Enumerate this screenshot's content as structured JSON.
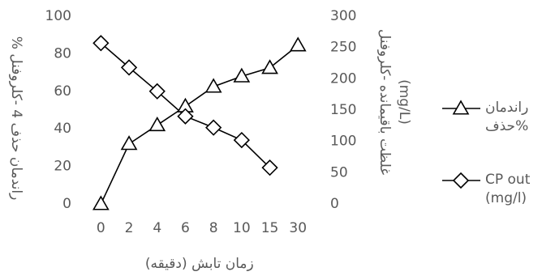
{
  "chart_data": {
    "type": "line",
    "categories": [
      "0",
      "2",
      "4",
      "6",
      "8",
      "10",
      "15",
      "30"
    ],
    "series": [
      {
        "name": "راندمان حذف%",
        "color": "#000000",
        "marker": "triangle",
        "values": [
          0,
          32,
          42,
          52,
          62.5,
          68,
          72.5,
          84.5
        ]
      },
      {
        "name": "CP out (mg/l)",
        "color": "#000000",
        "marker": "diamond",
        "axis": "y2",
        "values": [
          257,
          218,
          180,
          140,
          122,
          102,
          58,
          null
        ]
      }
    ],
    "xlabel": "زمان تابش (دقیقه)",
    "ylabel": "% راندمان حذف 4 -کلروفنل",
    "y2label": [
      "غلظت باقیمانده -کلروفنل",
      "(mg/L)"
    ],
    "ylim": [
      0,
      100
    ],
    "yticks": [
      0,
      20,
      40,
      60,
      80,
      100
    ],
    "y2lim": [
      0,
      300
    ],
    "y2ticks": [
      0,
      50,
      100,
      150,
      200,
      250,
      300
    ],
    "grid": false,
    "legend": "right"
  }
}
